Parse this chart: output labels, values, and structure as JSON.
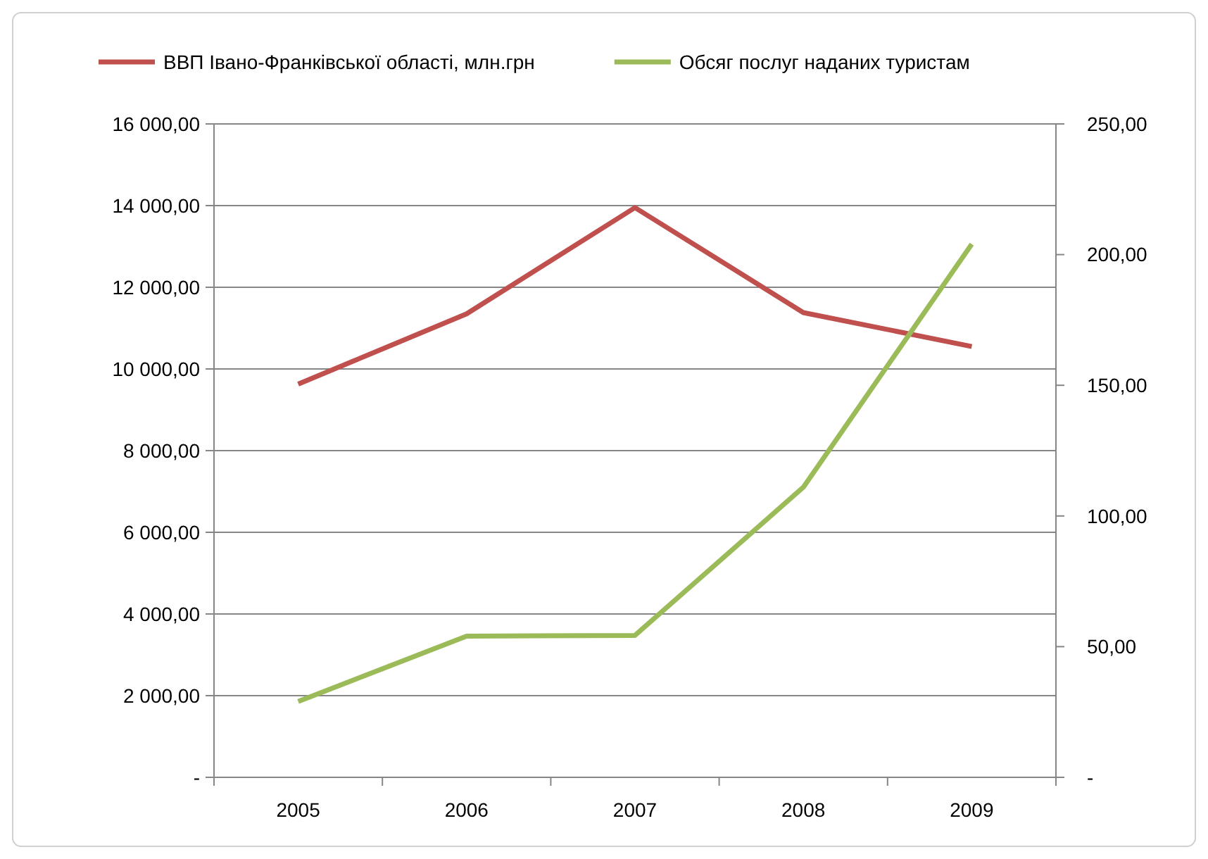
{
  "chart_data": {
    "type": "line",
    "categories": [
      "2005",
      "2006",
      "2007",
      "2008",
      "2009"
    ],
    "series": [
      {
        "name": "ВВП Івано-Франківської області, млн.грн",
        "color": "#c0504d",
        "values": [
          9630,
          11350,
          13950,
          11380,
          10550
        ]
      },
      {
        "name": "Обсяг послуг наданих туристам",
        "color": "#9bbb59",
        "values": [
          29,
          54,
          54.3,
          111,
          204
        ],
        "axis": "y2"
      }
    ],
    "ylim": [
      0,
      16000
    ],
    "yticks": [
      {
        "value": 0,
        "label": "-"
      },
      {
        "value": 2000,
        "label": "2 000,00"
      },
      {
        "value": 4000,
        "label": "4 000,00"
      },
      {
        "value": 6000,
        "label": "6 000,00"
      },
      {
        "value": 8000,
        "label": "8 000,00"
      },
      {
        "value": 10000,
        "label": "10 000,00"
      },
      {
        "value": 12000,
        "label": "12 000,00"
      },
      {
        "value": 14000,
        "label": "14 000,00"
      },
      {
        "value": 16000,
        "label": "16 000,00"
      }
    ],
    "y2lim": [
      0,
      250
    ],
    "y2ticks": [
      {
        "value": 0,
        "label": "-"
      },
      {
        "value": 50,
        "label": "50,00"
      },
      {
        "value": 100,
        "label": "100,00"
      },
      {
        "value": 150,
        "label": "150,00"
      },
      {
        "value": 200,
        "label": "200,00"
      },
      {
        "value": 250,
        "label": "250,00"
      }
    ],
    "grid": "y",
    "legend": "top",
    "marker": "none",
    "line_style": "solid"
  }
}
